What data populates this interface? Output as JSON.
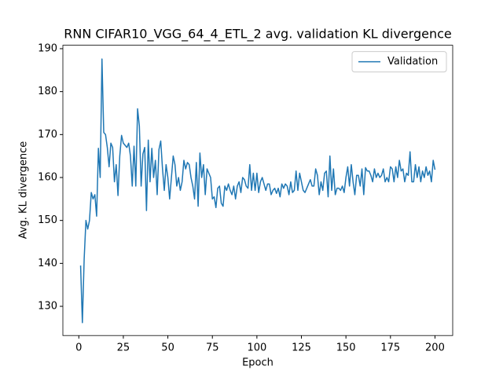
{
  "chart_data": {
    "type": "line",
    "title": "RNN CIFAR10_VGG_64_4_ETL_2 avg. validation KL divergence",
    "x_label": "Epoch",
    "y_label": "Avg. KL divergence",
    "x": [
      1,
      2,
      3,
      4,
      5,
      6,
      7,
      8,
      9,
      10,
      11,
      12,
      13,
      14,
      15,
      16,
      17,
      18,
      19,
      20,
      21,
      22,
      23,
      24,
      25,
      26,
      27,
      28,
      29,
      30,
      31,
      32,
      33,
      34,
      35,
      36,
      37,
      38,
      39,
      40,
      41,
      42,
      43,
      44,
      45,
      46,
      47,
      48,
      49,
      50,
      51,
      52,
      53,
      54,
      55,
      56,
      57,
      58,
      59,
      60,
      61,
      62,
      63,
      64,
      65,
      66,
      67,
      68,
      69,
      70,
      71,
      72,
      73,
      74,
      75,
      76,
      77,
      78,
      79,
      80,
      81,
      82,
      83,
      84,
      85,
      86,
      87,
      88,
      89,
      90,
      91,
      92,
      93,
      94,
      95,
      96,
      97,
      98,
      99,
      100,
      101,
      102,
      103,
      104,
      105,
      106,
      107,
      108,
      109,
      110,
      111,
      112,
      113,
      114,
      115,
      116,
      117,
      118,
      119,
      120,
      121,
      122,
      123,
      124,
      125,
      126,
      127,
      128,
      129,
      130,
      131,
      132,
      133,
      134,
      135,
      136,
      137,
      138,
      139,
      140,
      141,
      142,
      143,
      144,
      145,
      146,
      147,
      148,
      149,
      150,
      151,
      152,
      153,
      154,
      155,
      156,
      157,
      158,
      159,
      160,
      161,
      162,
      163,
      164,
      165,
      166,
      167,
      168,
      169,
      170,
      171,
      172,
      173,
      174,
      175,
      176,
      177,
      178,
      179,
      180,
      181,
      182,
      183,
      184,
      185,
      186,
      187,
      188,
      189,
      190,
      191,
      192,
      193,
      194,
      195,
      196,
      197,
      198,
      199,
      200
    ],
    "series": [
      {
        "name": "Validation",
        "color": "#1f77b4",
        "values": [
          139.5,
          126.2,
          141,
          150,
          148,
          150,
          156.5,
          155,
          156,
          151,
          166.8,
          160,
          187.6,
          170.5,
          170,
          167,
          162.5,
          168,
          167,
          159,
          163,
          155.8,
          165,
          169.8,
          168,
          167.5,
          167,
          168,
          165,
          158,
          167.3,
          158,
          176,
          172,
          158,
          165.5,
          167,
          152.3,
          168.7,
          159,
          166.8,
          160,
          164,
          156,
          166.5,
          168.5,
          162,
          157,
          163,
          160,
          155,
          160,
          165,
          163,
          158,
          160,
          157,
          159,
          164,
          162,
          163.5,
          163,
          160,
          158,
          155,
          163.5,
          153.3,
          165.7,
          160,
          163,
          156,
          162,
          161,
          160,
          155,
          155.5,
          153,
          157.5,
          158,
          154,
          153.3,
          158,
          157,
          158.5,
          157,
          156,
          158,
          155,
          158,
          159,
          156.5,
          160,
          159.5,
          158,
          157.5,
          163,
          157,
          161,
          157,
          161,
          156.5,
          159,
          160,
          158.5,
          157,
          158.5,
          158.5,
          156,
          157,
          157.5,
          156.3,
          157.5,
          155.5,
          158.5,
          157.5,
          158.5,
          158,
          156,
          159,
          156.5,
          157,
          161.5,
          157,
          161,
          159,
          157,
          156.5,
          157.5,
          158.5,
          159.5,
          158,
          158,
          162,
          160.5,
          156,
          159,
          157,
          161,
          161.5,
          155.5,
          165,
          157,
          162,
          156,
          157.5,
          157.5,
          157,
          158,
          156.5,
          160,
          162.5,
          158,
          163,
          159,
          156,
          160.5,
          160.5,
          158,
          162,
          156,
          162.3,
          161.5,
          161.5,
          160.5,
          159,
          162,
          160,
          161,
          160,
          160.5,
          162,
          159,
          160,
          159,
          162.5,
          162,
          159,
          162.5,
          160,
          164,
          161.5,
          162,
          159,
          161,
          160.5,
          166,
          159,
          159,
          163,
          160,
          162.5,
          159,
          161.5,
          160,
          162.5,
          160.5,
          161.5,
          159,
          164,
          161.8
        ]
      }
    ],
    "xlim": [
      -8.95,
      209.95
    ],
    "ylim": [
      123.2,
      190.8
    ],
    "xticks": [
      0,
      25,
      50,
      75,
      100,
      125,
      150,
      175,
      200
    ],
    "yticks": [
      130,
      140,
      150,
      160,
      170,
      180,
      190
    ],
    "legend": "upper right"
  }
}
